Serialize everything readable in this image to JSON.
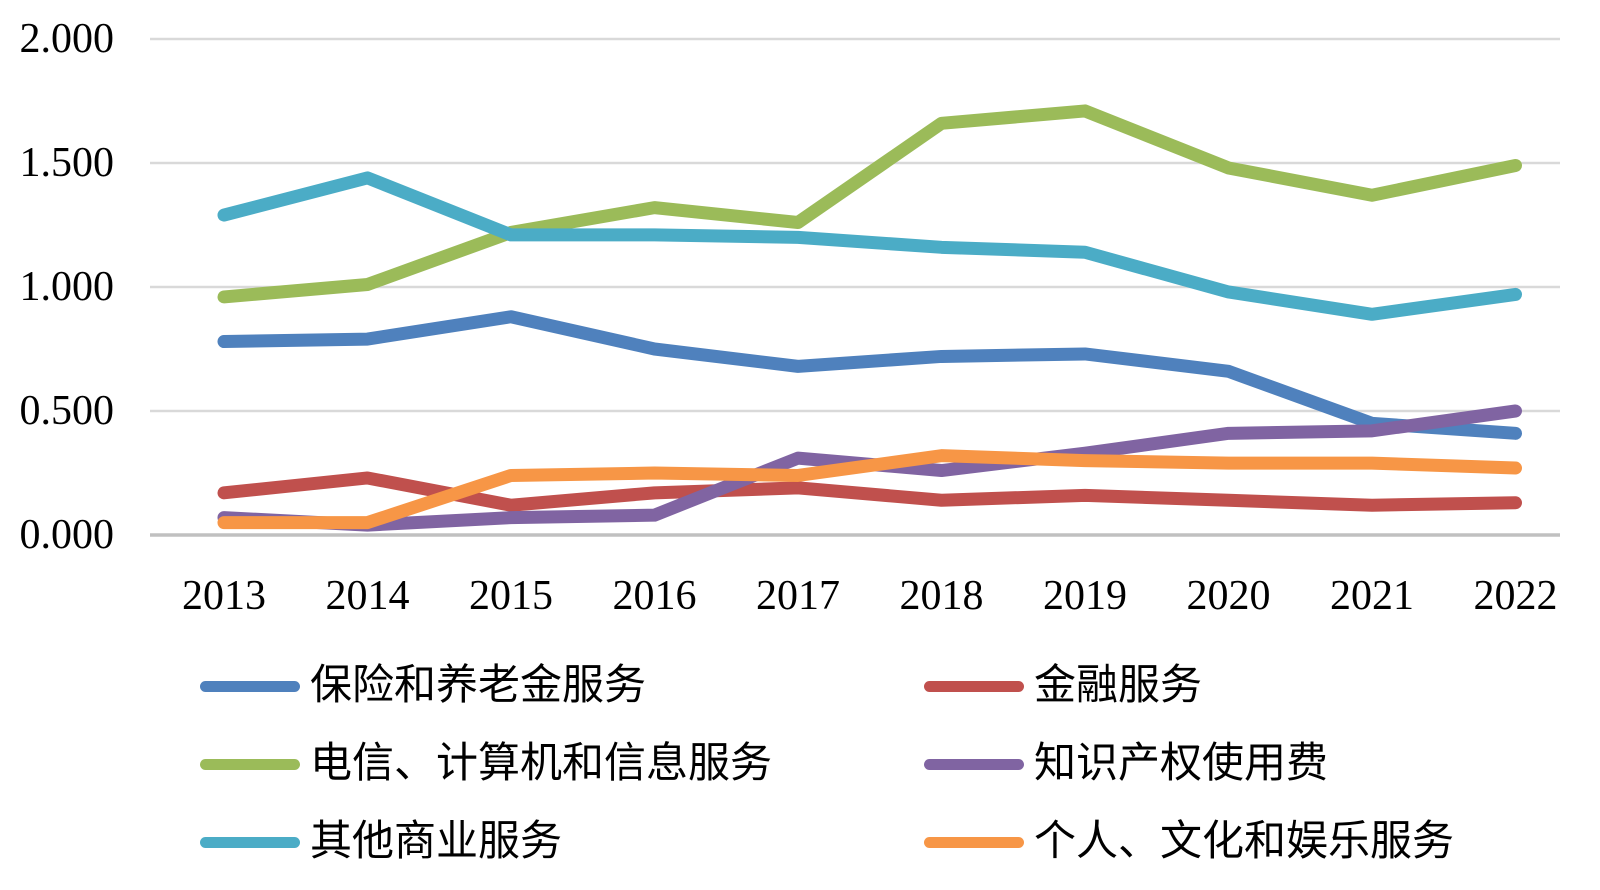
{
  "chart_data": {
    "type": "line",
    "title": "",
    "xlabel": "",
    "ylabel": "",
    "categories": [
      "2013",
      "2014",
      "2015",
      "2016",
      "2017",
      "2018",
      "2019",
      "2020",
      "2021",
      "2022"
    ],
    "series": [
      {
        "name": "保险和养老金服务",
        "color": "#4F81BD",
        "values": [
          0.78,
          0.79,
          0.88,
          0.75,
          0.68,
          0.72,
          0.73,
          0.66,
          0.45,
          0.41
        ]
      },
      {
        "name": "金融服务",
        "color": "#C0504D",
        "values": [
          0.17,
          0.23,
          0.12,
          0.17,
          0.19,
          0.14,
          0.16,
          0.14,
          0.12,
          0.13
        ]
      },
      {
        "name": "电信、计算机和信息服务",
        "color": "#9BBB59",
        "values": [
          0.96,
          1.01,
          1.22,
          1.32,
          1.26,
          1.66,
          1.71,
          1.48,
          1.37,
          1.49
        ]
      },
      {
        "name": "知识产权使用费",
        "color": "#8064A2",
        "values": [
          0.07,
          0.04,
          0.07,
          0.08,
          0.31,
          0.26,
          0.33,
          0.41,
          0.42,
          0.5
        ]
      },
      {
        "name": "其他商业服务",
        "color": "#4BACC6",
        "values": [
          1.29,
          1.44,
          1.21,
          1.21,
          1.2,
          1.16,
          1.14,
          0.98,
          0.89,
          0.97
        ]
      },
      {
        "name": "个人、文化和娱乐服务",
        "color": "#F79646",
        "values": [
          0.05,
          0.05,
          0.24,
          0.25,
          0.24,
          0.32,
          0.3,
          0.29,
          0.29,
          0.27
        ]
      }
    ],
    "y_axis": {
      "min": 0,
      "max": 2,
      "tick_values": [
        0,
        0.5,
        1,
        1.5,
        2
      ],
      "tick_labels": [
        "0.000",
        "0.500",
        "1.000",
        "1.500",
        "2.000"
      ]
    },
    "grid": true,
    "legend": {
      "position": "bottom",
      "columns": [
        [
          0,
          2,
          4
        ],
        [
          1,
          3,
          5
        ]
      ]
    },
    "colors": {
      "gridline": "#D9D9D9",
      "axis_line": "#C0C0C0",
      "text": "#000000",
      "background": "#FFFFFF"
    }
  }
}
